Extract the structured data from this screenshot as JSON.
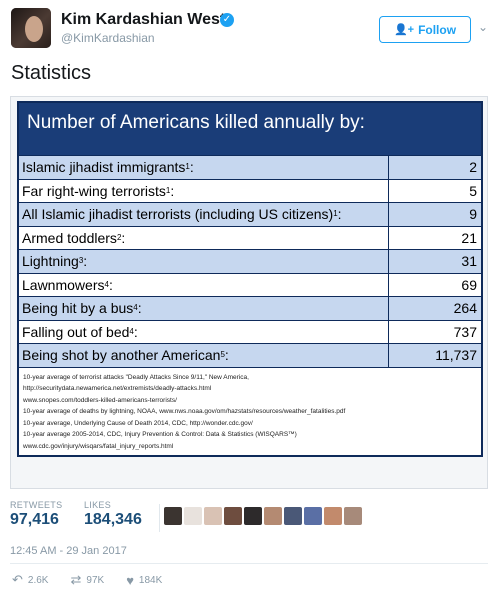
{
  "author": {
    "name": "Kim Kardashian West",
    "handle": "@KimKardashian",
    "verified_icon": "verified-badge-icon",
    "follow_label": "Follow"
  },
  "tweet_text": "Statistics",
  "table": {
    "title": "Number of Americans killed annually by:",
    "rows": [
      {
        "label": "Islamic jihadist immigrants",
        "sup": "1",
        "tail": ":",
        "value": "2"
      },
      {
        "label": "Far right-wing terrorists",
        "sup": "1",
        "tail": ":",
        "value": "5"
      },
      {
        "label": "All Islamic jihadist terrorists (including US citizens)",
        "sup": "1",
        "tail": ":",
        "value": "9"
      },
      {
        "label": "Armed toddlers",
        "sup": "2",
        "tail": ":",
        "value": "21"
      },
      {
        "label": "Lightning",
        "sup": "3",
        "tail": ":",
        "value": "31"
      },
      {
        "label": "Lawnmowers",
        "sup": "4",
        "tail": ":",
        "value": "69"
      },
      {
        "label": "Being hit by a bus",
        "sup": "4",
        "tail": ":",
        "value": "264"
      },
      {
        "label": "Falling out of bed",
        "sup": "4",
        "tail": ":",
        "value": "737"
      },
      {
        "label": "Being shot by another American",
        "sup": "5",
        "tail": ":",
        "value": "11,737"
      }
    ],
    "notes": [
      "10-year average of terrorist attacks \"Deadly Attacks Since 9/11,\" New America,",
      "http://securitydata.newamerica.net/extremists/deadly-attacks.html",
      "www.snopes.com/toddlers-killed-americans-terrorists/",
      "10-year average of deaths by lightning, NOAA, www.nws.noaa.gov/om/hazstats/resources/weather_fatalities.pdf",
      "10-year average, Underlying Cause of Death 2014, CDC, http://wonder.cdc.gov/",
      "10-year average 2005-2014, CDC, Injury Prevention & Control: Data & Statistics (WISQARS™)",
      "www.cdc.gov/injury/wisqars/fatal_injury_reports.html"
    ]
  },
  "stats": {
    "retweets_label": "RETWEETS",
    "retweets_value": "97,416",
    "likes_label": "LIKES",
    "likes_value": "184,346"
  },
  "timestamp": "12:45 AM - 29 Jan 2017",
  "actions": {
    "reply_count": "2.6K",
    "retweet_count": "97K",
    "like_count": "184K"
  },
  "liker_colors": [
    "#3b3430",
    "#e8e2dd",
    "#d9c2b4",
    "#6e4d3f",
    "#2d2a2b",
    "#b48a72",
    "#4a5877",
    "#5a6fa5",
    "#c28a6c",
    "#a78a7a"
  ]
}
